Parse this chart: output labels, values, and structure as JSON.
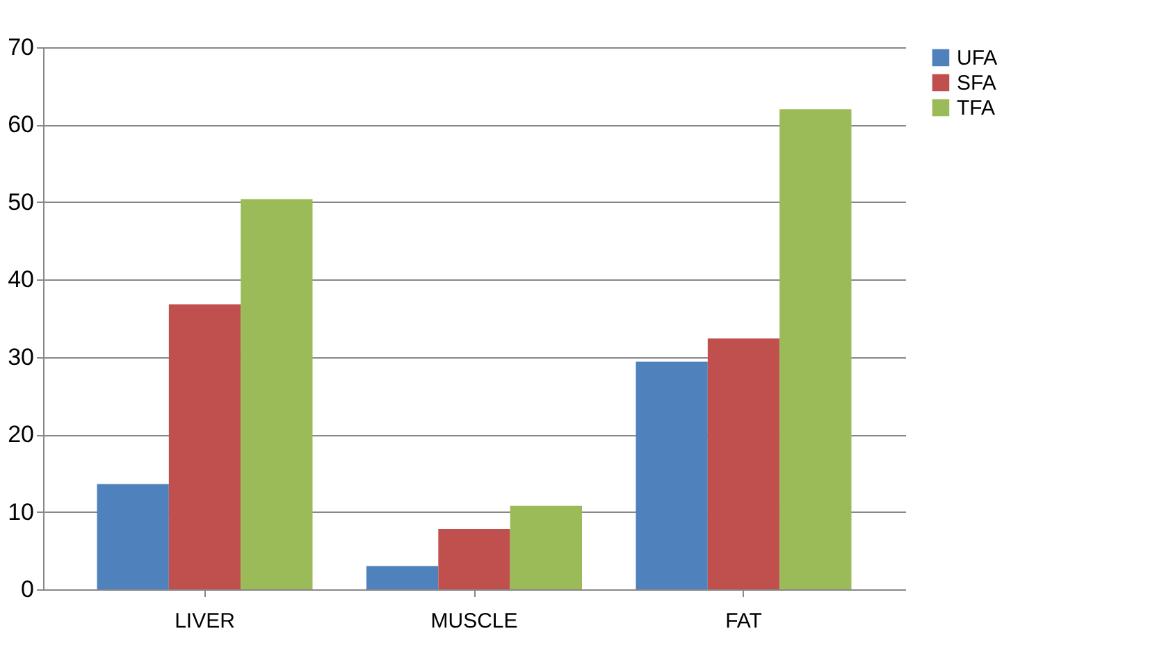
{
  "chart_data": {
    "type": "bar",
    "categories": [
      "LIVER",
      "MUSCLE",
      "FAT"
    ],
    "series": [
      {
        "name": "UFA",
        "color": "#4f81bd",
        "values": [
          13.6,
          3,
          29.4
        ]
      },
      {
        "name": "SFA",
        "color": "#c0504d",
        "values": [
          36.8,
          7.8,
          32.4
        ]
      },
      {
        "name": "TFA",
        "color": "#9bbb59",
        "values": [
          50.4,
          10.8,
          62
        ]
      }
    ],
    "ylim": [
      0,
      70
    ],
    "yticks": [
      0,
      10,
      20,
      30,
      40,
      50,
      60,
      70
    ],
    "grid": "y",
    "legend": "right"
  }
}
